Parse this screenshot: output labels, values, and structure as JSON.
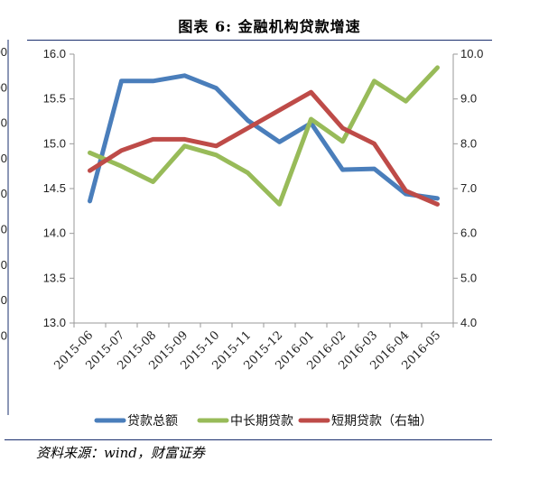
{
  "title": "图表 6:  金融机构贷款增速",
  "source": "资料来源：wind，财富证券",
  "left_edge_ticks": [
    "00",
    "00",
    "0",
    "0",
    "0",
    "0",
    "0",
    "0",
    "0"
  ],
  "chart_data": {
    "type": "line",
    "categories": [
      "2015-06",
      "2015-07",
      "2015-08",
      "2015-09",
      "2015-10",
      "2015-11",
      "2015-12",
      "2016-01",
      "2016-02",
      "2016-03",
      "2016-04",
      "2016-05"
    ],
    "left_axis": {
      "ylim": [
        13.0,
        16.0
      ],
      "ticks": [
        "13.0",
        "13.5",
        "14.0",
        "14.5",
        "15.0",
        "15.5",
        "16.0"
      ]
    },
    "right_axis": {
      "ylim": [
        4.0,
        10.0
      ],
      "ticks": [
        "4.0",
        "5.0",
        "6.0",
        "7.0",
        "8.0",
        "9.0",
        "10.0"
      ]
    },
    "series": [
      {
        "name": "贷款总额",
        "axis": "left",
        "color": "#4a7ebb",
        "values": [
          14.36,
          15.7,
          15.7,
          15.76,
          15.62,
          15.26,
          15.02,
          15.23,
          14.71,
          14.72,
          14.44,
          14.39
        ]
      },
      {
        "name": "中长期贷款",
        "axis": "right",
        "color": "#98bb59",
        "values": [
          7.8,
          7.5,
          7.15,
          7.95,
          7.75,
          7.35,
          6.65,
          8.55,
          8.05,
          9.4,
          8.95,
          9.7
        ]
      },
      {
        "name": "短期贷款（右轴）",
        "axis": "right",
        "color": "#be4b48",
        "values": [
          7.4,
          7.85,
          8.1,
          8.1,
          7.95,
          8.35,
          8.75,
          9.15,
          8.35,
          8.0,
          6.95,
          6.65
        ]
      }
    ],
    "legend": "bottom",
    "grid": false
  }
}
